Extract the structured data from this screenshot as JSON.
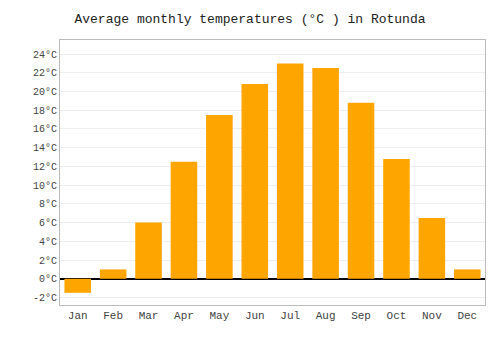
{
  "chart_data": {
    "type": "bar",
    "title": "Average monthly temperatures (°C ) in Rotunda",
    "categories": [
      "Jan",
      "Feb",
      "Mar",
      "Apr",
      "May",
      "Jun",
      "Jul",
      "Aug",
      "Sep",
      "Oct",
      "Nov",
      "Dec"
    ],
    "values": [
      -1.5,
      1.0,
      6.0,
      12.5,
      17.5,
      20.8,
      23.0,
      22.5,
      18.8,
      12.8,
      6.5,
      1.0
    ],
    "color": "#FFA500",
    "ylim": [
      -2.8,
      25.5
    ],
    "yticks": [
      {
        "value": -2,
        "label": "-2°C"
      },
      {
        "value": 0,
        "label": "0°C"
      },
      {
        "value": 2,
        "label": "2°C"
      },
      {
        "value": 4,
        "label": "4°C"
      },
      {
        "value": 6,
        "label": "6°C"
      },
      {
        "value": 8,
        "label": "8°C"
      },
      {
        "value": 10,
        "label": "10°C"
      },
      {
        "value": 12,
        "label": "12°C"
      },
      {
        "value": 14,
        "label": "14°C"
      },
      {
        "value": 16,
        "label": "16°C"
      },
      {
        "value": 18,
        "label": "18°C"
      },
      {
        "value": 20,
        "label": "20°C"
      },
      {
        "value": 22,
        "label": "22°C"
      },
      {
        "value": 24,
        "label": "24°C"
      }
    ],
    "grid": true
  }
}
